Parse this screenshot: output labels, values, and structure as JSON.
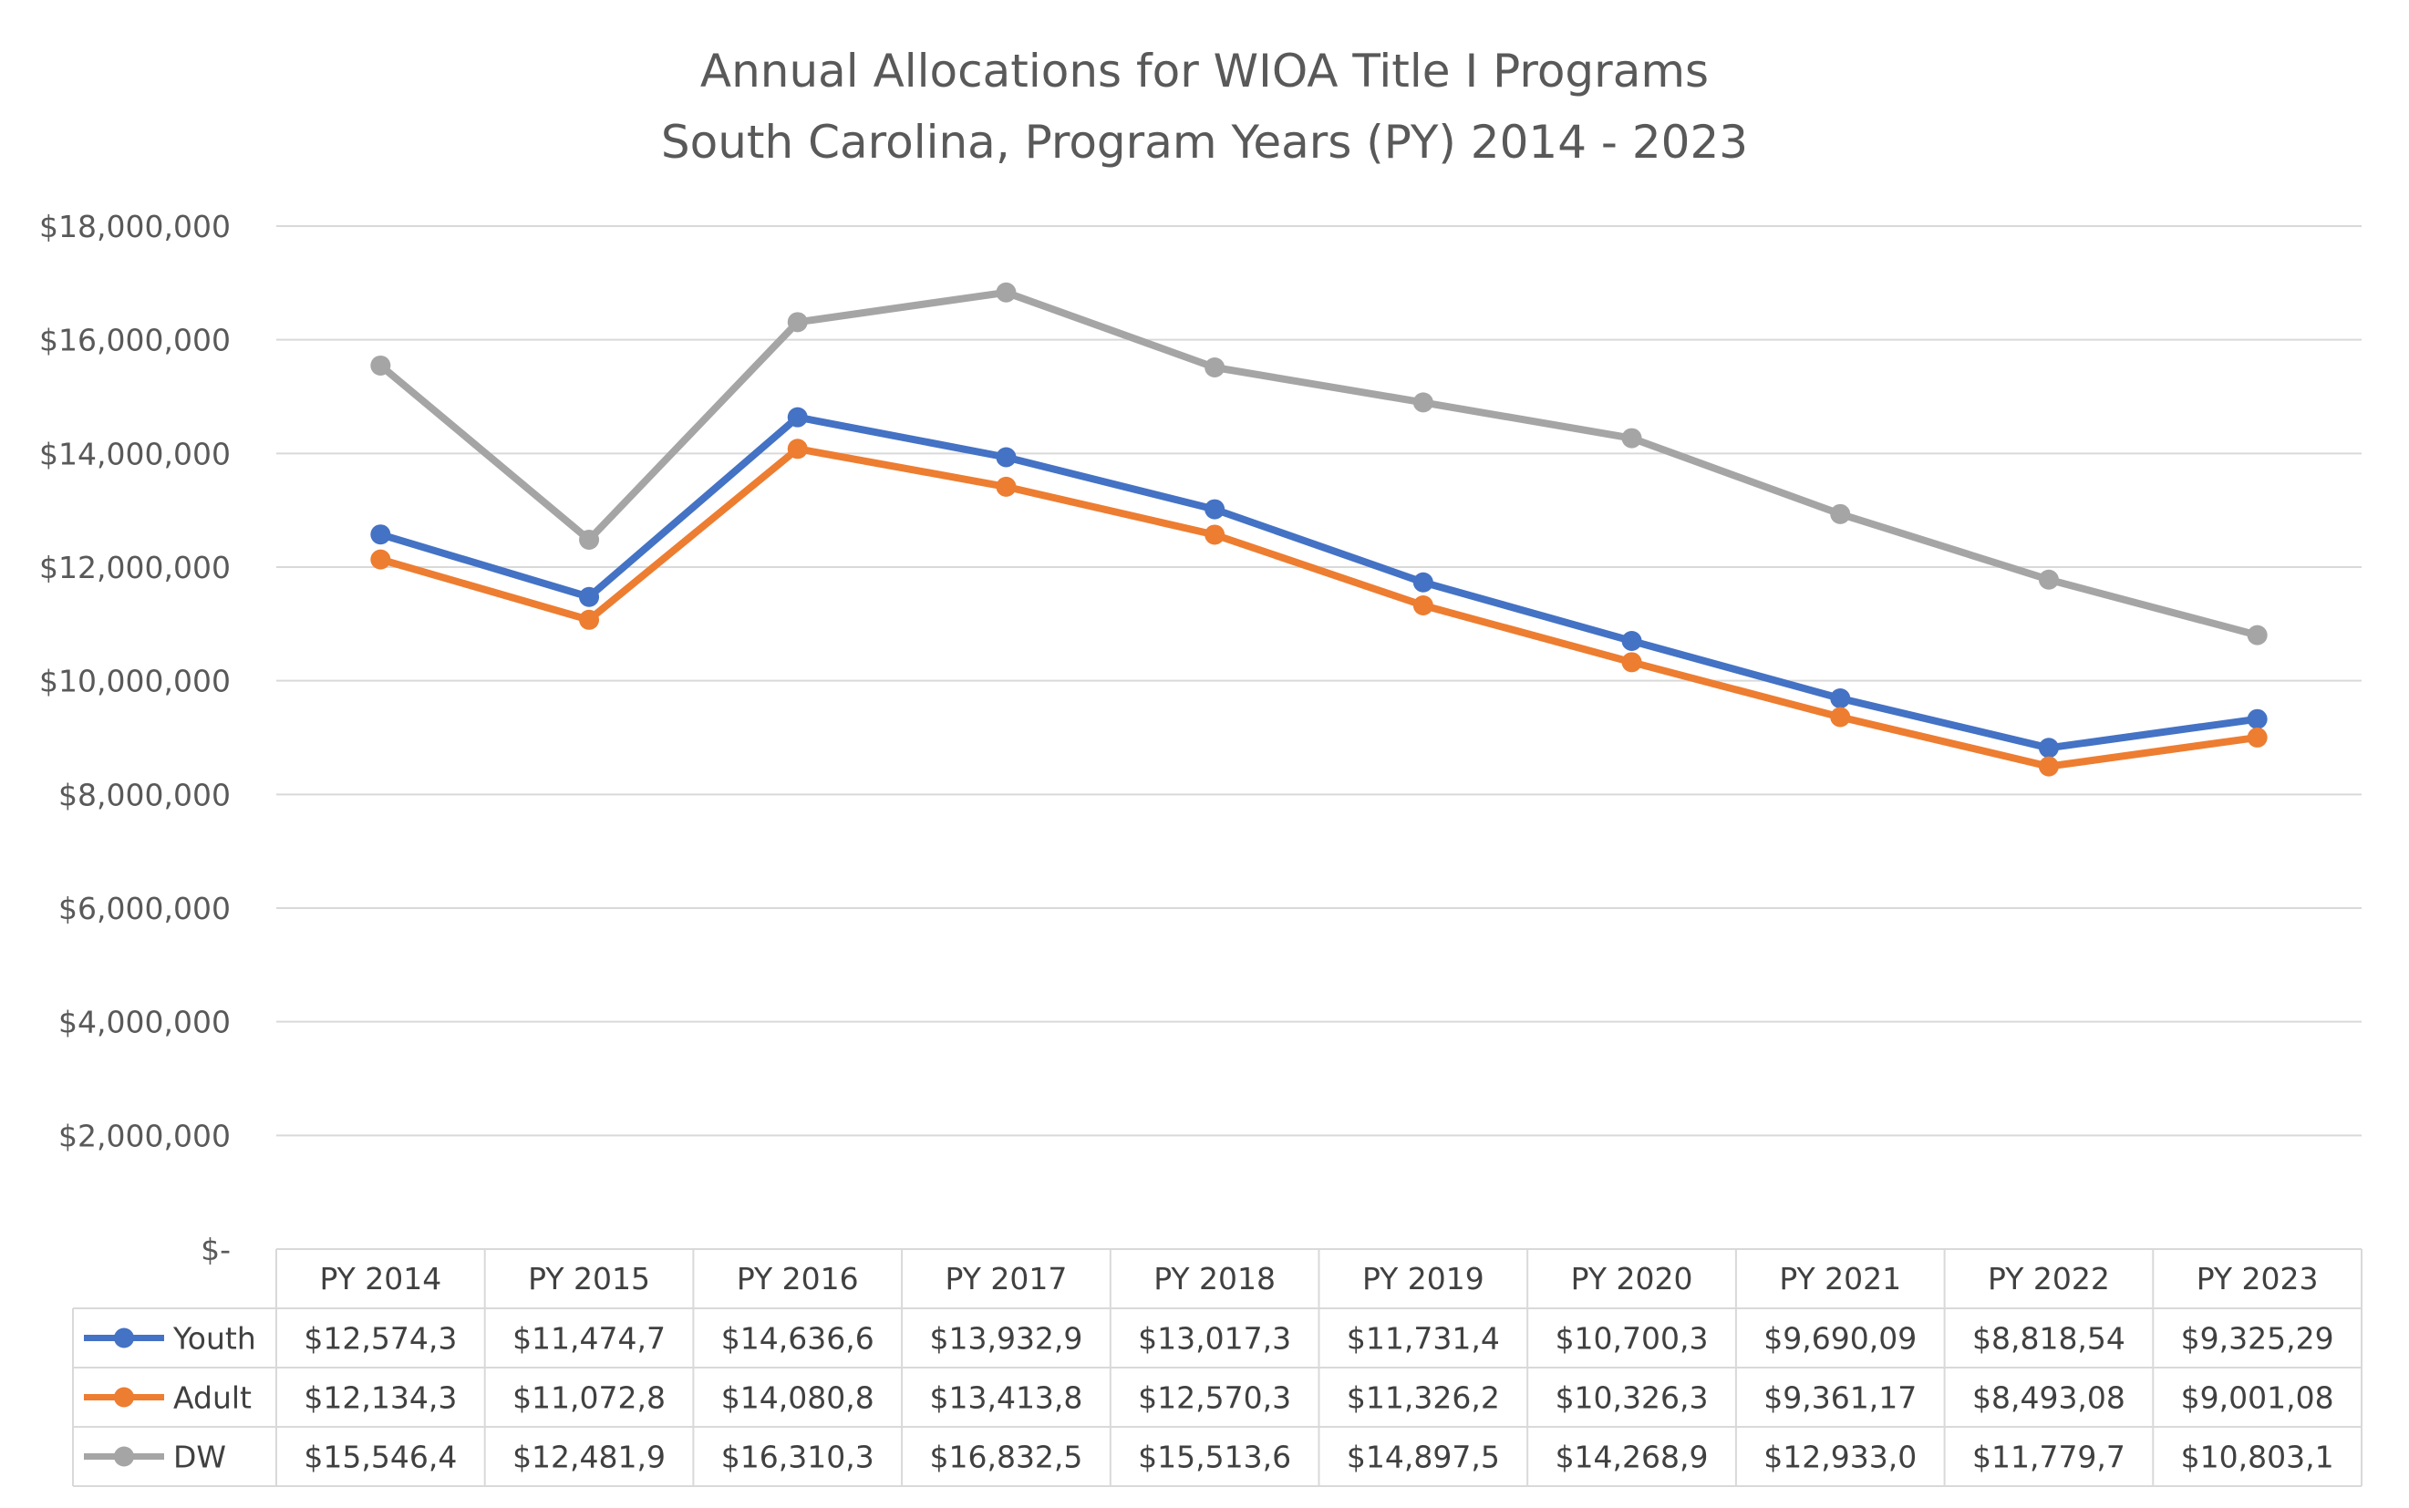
{
  "chart_data": {
    "type": "line",
    "title": "Annual Allocations for WIOA Title I Programs",
    "subtitle": "South Carolina, Program Years (PY) 2014 - 2023",
    "categories": [
      "PY 2014",
      "PY 2015",
      "PY 2016",
      "PY 2017",
      "PY 2018",
      "PY 2019",
      "PY 2020",
      "PY 2021",
      "PY 2022",
      "PY 2023"
    ],
    "ylim": [
      0,
      18000000
    ],
    "yticks": [
      0,
      2000000,
      4000000,
      6000000,
      8000000,
      10000000,
      12000000,
      14000000,
      16000000,
      18000000
    ],
    "ytick_labels": [
      "$-",
      "$2,000,000",
      "$4,000,000",
      "$6,000,000",
      "$8,000,000",
      "$10,000,000",
      "$12,000,000",
      "$14,000,000",
      "$16,000,000",
      "$18,000,000"
    ],
    "grid": true,
    "legend": "data-table",
    "series": [
      {
        "name": "Youth",
        "color": "#4472C4",
        "values": [
          12574300,
          11474700,
          14636600,
          13932900,
          13017300,
          11731400,
          10700300,
          9690090,
          8818540,
          9325290
        ],
        "table_labels": [
          "$12,574,3",
          "$11,474,7",
          "$14,636,6",
          "$13,932,9",
          "$13,017,3",
          "$11,731,4",
          "$10,700,3",
          "$9,690,09",
          "$8,818,54",
          "$9,325,29"
        ]
      },
      {
        "name": "Adult",
        "color": "#ED7D31",
        "values": [
          12134300,
          11072800,
          14080800,
          13413800,
          12570300,
          11326200,
          10326300,
          9361170,
          8493080,
          9001080
        ],
        "table_labels": [
          "$12,134,3",
          "$11,072,8",
          "$14,080,8",
          "$13,413,8",
          "$12,570,3",
          "$11,326,2",
          "$10,326,3",
          "$9,361,17",
          "$8,493,08",
          "$9,001,08"
        ]
      },
      {
        "name": "DW",
        "color": "#A5A5A5",
        "values": [
          15546400,
          12481900,
          16310300,
          16832500,
          15513600,
          14897500,
          14268900,
          12933000,
          11779700,
          10803100
        ],
        "table_labels": [
          "$15,546,4",
          "$12,481,9",
          "$16,310,3",
          "$16,832,5",
          "$15,513,6",
          "$14,897,5",
          "$14,268,9",
          "$12,933,0",
          "$11,779,7",
          "$10,803,1"
        ]
      }
    ]
  }
}
